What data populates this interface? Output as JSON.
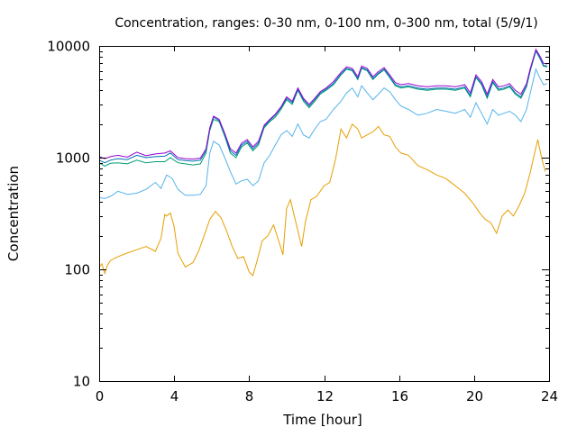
{
  "chart_data": {
    "type": "line",
    "title": "Concentration, ranges: 0-30 nm, 0-100 nm, 0-300 nm, total (5/9/1)",
    "xlabel": "Time [hour]",
    "ylabel": "Concentration",
    "xlim": [
      0,
      24
    ],
    "ylim": [
      10,
      10000
    ],
    "yscale": "log",
    "grid": false,
    "xticks": [
      0,
      4,
      8,
      12,
      16,
      20,
      24
    ],
    "xtick_labels": [
      "0",
      "4",
      "8",
      "12",
      "16",
      "20",
      "24"
    ],
    "yticks": [
      10,
      100,
      1000,
      10000
    ],
    "ytick_labels": [
      "10",
      "100",
      "1000",
      "10000"
    ],
    "series": [
      {
        "color": "#e69f00",
        "x": [
          0,
          0.15,
          0.3,
          0.45,
          0.6,
          1.0,
          1.5,
          2.0,
          2.5,
          3.0,
          3.3,
          3.5,
          3.6,
          3.8,
          4.0,
          4.2,
          4.4,
          4.6,
          5.0,
          5.3,
          5.6,
          5.9,
          6.2,
          6.5,
          6.8,
          7.1,
          7.4,
          7.7,
          8.0,
          8.2,
          8.4,
          8.7,
          9.0,
          9.3,
          9.6,
          9.8,
          10.0,
          10.2,
          10.5,
          10.8,
          11.0,
          11.3,
          11.6,
          12.0,
          12.3,
          12.6,
          12.9,
          13.2,
          13.5,
          13.8,
          14.0,
          14.3,
          14.6,
          14.9,
          15.2,
          15.5,
          15.8,
          16.1,
          16.5,
          17.0,
          17.5,
          18.0,
          18.5,
          19.0,
          19.5,
          20.0,
          20.3,
          20.6,
          20.9,
          21.2,
          21.5,
          21.8,
          22.1,
          22.4,
          22.7,
          23.0,
          23.2,
          23.4,
          23.6,
          23.8
        ],
        "values": [
          105,
          112,
          92,
          110,
          120,
          130,
          140,
          150,
          160,
          145,
          190,
          310,
          300,
          320,
          240,
          140,
          120,
          105,
          115,
          145,
          200,
          280,
          330,
          290,
          220,
          160,
          125,
          130,
          95,
          88,
          115,
          180,
          200,
          250,
          175,
          135,
          350,
          420,
          260,
          160,
          265,
          420,
          450,
          560,
          600,
          950,
          1800,
          1500,
          2000,
          1800,
          1500,
          1600,
          1700,
          1900,
          1600,
          1550,
          1250,
          1100,
          1050,
          850,
          780,
          700,
          650,
          560,
          480,
          380,
          320,
          280,
          260,
          210,
          300,
          340,
          300,
          370,
          480,
          740,
          1050,
          1450,
          1000,
          750
        ]
      },
      {
        "color": "#56b4e9",
        "x": [
          0,
          0.3,
          0.6,
          1.0,
          1.5,
          2.0,
          2.5,
          3.0,
          3.3,
          3.6,
          3.9,
          4.2,
          4.6,
          5.0,
          5.4,
          5.7,
          5.9,
          6.1,
          6.4,
          6.7,
          7.0,
          7.3,
          7.6,
          7.9,
          8.2,
          8.5,
          8.8,
          9.1,
          9.4,
          9.7,
          10.0,
          10.3,
          10.6,
          10.9,
          11.2,
          11.5,
          11.8,
          12.1,
          12.5,
          12.9,
          13.2,
          13.5,
          13.8,
          14.0,
          14.3,
          14.6,
          14.9,
          15.2,
          15.5,
          15.8,
          16.1,
          16.5,
          17.0,
          17.5,
          18.0,
          18.5,
          19.0,
          19.5,
          19.8,
          20.1,
          20.4,
          20.7,
          21.0,
          21.3,
          21.6,
          21.9,
          22.2,
          22.5,
          22.8,
          23.0,
          23.3,
          23.5,
          23.7,
          23.9
        ],
        "values": [
          440,
          430,
          450,
          500,
          470,
          480,
          520,
          600,
          530,
          700,
          650,
          520,
          460,
          460,
          470,
          560,
          1100,
          1400,
          1300,
          1000,
          750,
          580,
          620,
          640,
          560,
          620,
          900,
          1050,
          1300,
          1600,
          1750,
          1550,
          2000,
          1600,
          1500,
          1800,
          2100,
          2200,
          2700,
          3200,
          3800,
          4200,
          3500,
          4400,
          3800,
          3300,
          3700,
          4200,
          3900,
          3300,
          2900,
          2700,
          2400,
          2500,
          2700,
          2600,
          2500,
          2700,
          2300,
          3100,
          2500,
          2000,
          2700,
          2400,
          2500,
          2600,
          2400,
          2100,
          2700,
          3800,
          6200,
          5200,
          4500,
          4600
        ]
      },
      {
        "color": "#009e73",
        "x": [
          0,
          0.3,
          0.6,
          1.0,
          1.5,
          2.0,
          2.5,
          3.0,
          3.5,
          3.8,
          4.2,
          4.6,
          5.0,
          5.4,
          5.7,
          5.9,
          6.1,
          6.4,
          6.7,
          7.0,
          7.3,
          7.6,
          7.9,
          8.2,
          8.5,
          8.8,
          9.1,
          9.4,
          9.7,
          10.0,
          10.3,
          10.6,
          10.9,
          11.2,
          11.5,
          11.8,
          12.1,
          12.5,
          12.9,
          13.2,
          13.5,
          13.8,
          14.0,
          14.3,
          14.6,
          14.9,
          15.2,
          15.5,
          15.8,
          16.1,
          16.5,
          17.0,
          17.5,
          18.0,
          18.5,
          19.0,
          19.5,
          19.8,
          20.1,
          20.4,
          20.7,
          21.0,
          21.3,
          21.6,
          21.9,
          22.2,
          22.5,
          22.8,
          23.0,
          23.3,
          23.5,
          23.7,
          23.9
        ],
        "values": [
          900,
          840,
          890,
          900,
          880,
          950,
          900,
          920,
          920,
          1000,
          900,
          880,
          860,
          880,
          1100,
          1750,
          2200,
          2100,
          1550,
          1100,
          1000,
          1250,
          1350,
          1150,
          1300,
          1850,
          2100,
          2300,
          2700,
          3300,
          3000,
          4000,
          3200,
          2800,
          3200,
          3700,
          4000,
          4500,
          5500,
          6200,
          6000,
          5000,
          6300,
          6000,
          5000,
          5600,
          6100,
          5200,
          4400,
          4200,
          4300,
          4100,
          4000,
          4100,
          4100,
          4000,
          4200,
          3500,
          5200,
          4500,
          3400,
          4700,
          4000,
          4100,
          4300,
          3700,
          3400,
          4300,
          6000,
          9000,
          7800,
          6600,
          6500
        ]
      },
      {
        "color": "#0072b2",
        "x": [
          0,
          0.3,
          0.6,
          1.0,
          1.5,
          2.0,
          2.5,
          3.0,
          3.5,
          3.8,
          4.2,
          4.6,
          5.0,
          5.4,
          5.7,
          5.9,
          6.1,
          6.4,
          6.7,
          7.0,
          7.3,
          7.6,
          7.9,
          8.2,
          8.5,
          8.8,
          9.1,
          9.4,
          9.7,
          10.0,
          10.3,
          10.6,
          10.9,
          11.2,
          11.5,
          11.8,
          12.1,
          12.5,
          12.9,
          13.2,
          13.5,
          13.8,
          14.0,
          14.3,
          14.6,
          14.9,
          15.2,
          15.5,
          15.8,
          16.1,
          16.5,
          17.0,
          17.5,
          18.0,
          18.5,
          19.0,
          19.5,
          19.8,
          20.1,
          20.4,
          20.7,
          21.0,
          21.3,
          21.6,
          21.9,
          22.2,
          22.5,
          22.8,
          23.0,
          23.3,
          23.5,
          23.7,
          23.9
        ],
        "values": [
          950,
          900,
          950,
          980,
          960,
          1050,
          1000,
          1020,
          1030,
          1100,
          960,
          940,
          930,
          950,
          1150,
          1800,
          2300,
          2150,
          1600,
          1150,
          1050,
          1300,
          1400,
          1200,
          1350,
          1900,
          2150,
          2400,
          2800,
          3400,
          3100,
          4100,
          3300,
          2900,
          3300,
          3800,
          4100,
          4600,
          5600,
          6300,
          6100,
          5100,
          6400,
          6100,
          5100,
          5700,
          6200,
          5300,
          4500,
          4300,
          4400,
          4200,
          4100,
          4200,
          4200,
          4100,
          4300,
          3600,
          5300,
          4600,
          3500,
          4800,
          4100,
          4200,
          4400,
          3800,
          3500,
          4400,
          6100,
          9100,
          7900,
          6700,
          6600
        ]
      },
      {
        "color": "#9400d3",
        "x": [
          0,
          0.3,
          0.6,
          1.0,
          1.5,
          2.0,
          2.5,
          3.0,
          3.5,
          3.8,
          4.2,
          4.6,
          5.0,
          5.4,
          5.7,
          5.9,
          6.1,
          6.4,
          6.7,
          7.0,
          7.3,
          7.6,
          7.9,
          8.2,
          8.5,
          8.8,
          9.1,
          9.4,
          9.7,
          10.0,
          10.3,
          10.6,
          10.9,
          11.2,
          11.5,
          11.8,
          12.1,
          12.5,
          12.9,
          13.2,
          13.5,
          13.8,
          14.0,
          14.3,
          14.6,
          14.9,
          15.2,
          15.5,
          15.8,
          16.1,
          16.5,
          17.0,
          17.5,
          18.0,
          18.5,
          19.0,
          19.5,
          19.8,
          20.1,
          20.4,
          20.7,
          21.0,
          21.3,
          21.6,
          21.9,
          22.2,
          22.5,
          22.8,
          23.0,
          23.3,
          23.5,
          23.7,
          23.9
        ],
        "values": [
          1020,
          980,
          1020,
          1050,
          1010,
          1120,
          1040,
          1080,
          1100,
          1150,
          1000,
          980,
          970,
          990,
          1200,
          1850,
          2350,
          2200,
          1650,
          1200,
          1100,
          1350,
          1450,
          1250,
          1400,
          1950,
          2200,
          2450,
          2850,
          3500,
          3200,
          4200,
          3400,
          3000,
          3400,
          3900,
          4200,
          4800,
          5800,
          6500,
          6300,
          5300,
          6600,
          6300,
          5300,
          5900,
          6400,
          5500,
          4700,
          4500,
          4600,
          4400,
          4300,
          4400,
          4400,
          4300,
          4500,
          3800,
          5500,
          4800,
          3700,
          5000,
          4300,
          4400,
          4600,
          4000,
          3700,
          4600,
          6300,
          9300,
          8200,
          7000,
          6900
        ]
      }
    ]
  }
}
